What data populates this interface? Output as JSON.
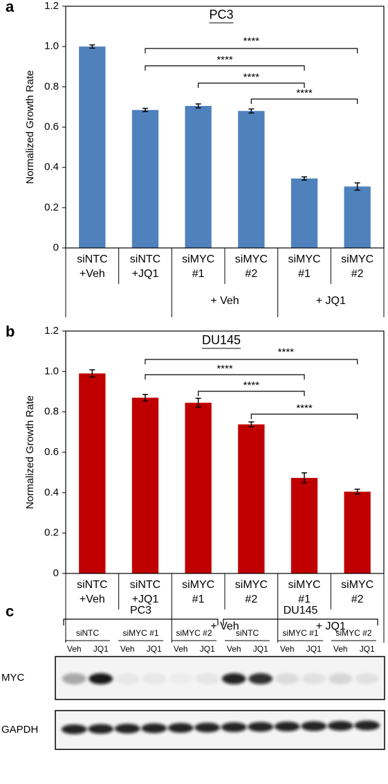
{
  "chart_data": [
    {
      "type": "bar",
      "panel_label": "a",
      "title": "PC3",
      "ylabel": "Normalized Growth Rate",
      "categories": [
        [
          "siNTC",
          "+Veh"
        ],
        [
          "siNTC",
          "+JQ1"
        ],
        [
          "siMYC",
          "#1"
        ],
        [
          "siMYC",
          "#2"
        ],
        [
          "siMYC",
          "#1"
        ],
        [
          "siMYC",
          "#2"
        ]
      ],
      "group_labels": [
        "+ Veh",
        "+ JQ1"
      ],
      "values": [
        1.0,
        0.685,
        0.705,
        0.68,
        0.345,
        0.305
      ],
      "errors": [
        0.008,
        0.008,
        0.01,
        0.01,
        0.008,
        0.018
      ],
      "color": "#4f81bd",
      "annotations": [
        "****",
        "****",
        "****",
        "****"
      ],
      "ylim": [
        0,
        1.2
      ],
      "yticks": [
        0,
        0.2,
        0.4,
        0.6,
        0.8,
        {
          "value": 1,
          "label": "1.0"
        },
        1.2
      ]
    },
    {
      "type": "bar",
      "panel_label": "b",
      "title": "DU145",
      "ylabel": "Normalized Growth Rate",
      "categories": [
        [
          "siNTC",
          "+Veh"
        ],
        [
          "siNTC",
          "+JQ1"
        ],
        [
          "siMYC",
          "#1"
        ],
        [
          "siMYC",
          "#2"
        ],
        [
          "siMYC",
          "#1"
        ],
        [
          "siMYC",
          "#2"
        ]
      ],
      "group_labels": [
        "+ Veh",
        "+ JQ1"
      ],
      "values": [
        0.99,
        0.87,
        0.845,
        0.738,
        0.473,
        0.405
      ],
      "errors": [
        0.018,
        0.016,
        0.022,
        0.012,
        0.025,
        0.012
      ],
      "color": "#c00000",
      "annotations": [
        "****",
        "****",
        "****",
        "****"
      ],
      "ylim": [
        0,
        1.2
      ],
      "yticks": [
        0,
        0.2,
        0.4,
        0.6,
        0.8,
        {
          "value": 1,
          "label": "1.0"
        },
        1.2
      ]
    }
  ],
  "blot": {
    "panel_label": "c",
    "cell_lines": [
      {
        "name": "PC3",
        "groups": [
          {
            "name": "siNTC",
            "lanes": [
              "Veh",
              "JQ1"
            ]
          },
          {
            "name": "siMYC #1",
            "lanes": [
              "Veh",
              "JQ1"
            ]
          },
          {
            "name": "siMYC #2",
            "lanes": [
              "Veh",
              "JQ1"
            ]
          }
        ]
      },
      {
        "name": "DU145",
        "groups": [
          {
            "name": "siNTC",
            "lanes": [
              "Veh",
              "JQ1"
            ]
          },
          {
            "name": "siMYC #1",
            "lanes": [
              "Veh",
              "JQ1"
            ]
          },
          {
            "name": "siMYC #2",
            "lanes": [
              "Veh",
              "JQ1"
            ]
          }
        ]
      }
    ],
    "rows": [
      "MYC",
      "GAPDH"
    ]
  }
}
